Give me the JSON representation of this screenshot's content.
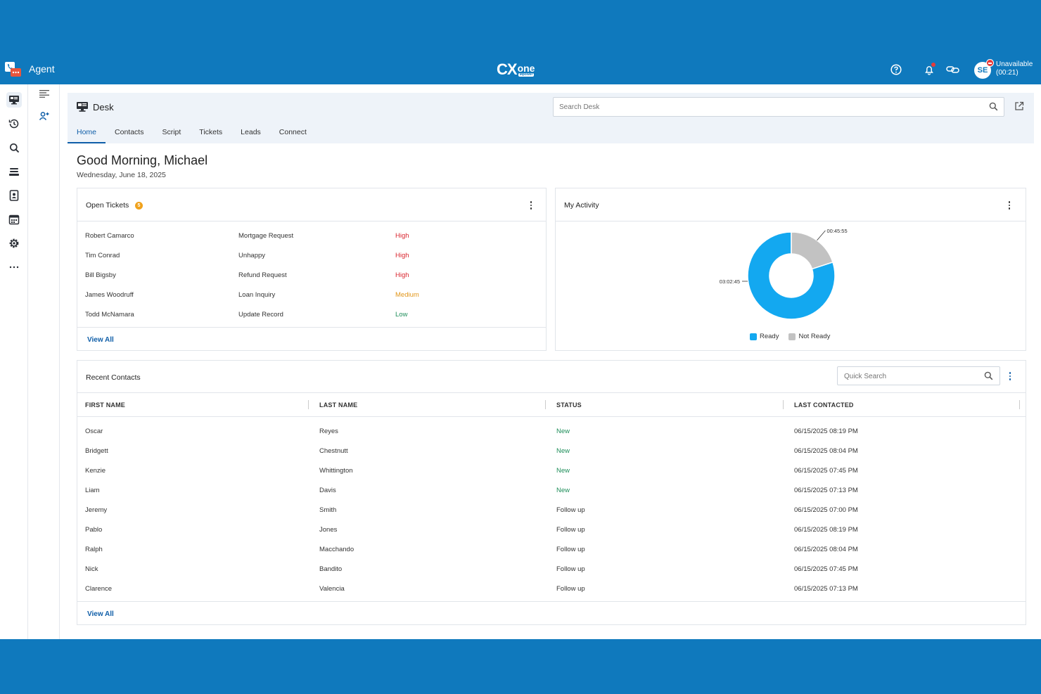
{
  "header": {
    "app_title": "Agent",
    "brand_main": "CX",
    "brand_one": "one",
    "brand_sub": "Mpower",
    "status_line1": "Unavailable",
    "status_line2": "(00:21)",
    "avatar_initials": "SE"
  },
  "desk": {
    "title": "Desk",
    "search_placeholder": "Search Desk",
    "tabs": [
      "Home",
      "Contacts",
      "Script",
      "Tickets",
      "Leads",
      "Connect"
    ],
    "active_tab": "Home"
  },
  "greeting": {
    "text": "Good Morning, Michael",
    "date": "Wednesday, June 18, 2025"
  },
  "open_tickets": {
    "title": "Open Tickets",
    "count": "5",
    "rows": [
      {
        "name": "Robert Camarco",
        "subject": "Mortgage Request",
        "priority": "High"
      },
      {
        "name": "Tim Conrad",
        "subject": "Unhappy",
        "priority": "High"
      },
      {
        "name": "Bill Bigsby",
        "subject": "Refund Request",
        "priority": "High"
      },
      {
        "name": "James Woodruff",
        "subject": "Loan Inquiry",
        "priority": "Medium"
      },
      {
        "name": "Todd McNamara",
        "subject": "Update Record",
        "priority": "Low"
      }
    ],
    "view_all": "View All"
  },
  "activity": {
    "title": "My Activity"
  },
  "chart_data": {
    "type": "pie",
    "categories": [
      "Ready",
      "Not Ready"
    ],
    "values": [
      0.8,
      0.2
    ],
    "labels": [
      "03:02:45",
      "00:45:55"
    ],
    "legend": [
      "Ready",
      "Not Ready"
    ],
    "legend_position": "bottom",
    "colors": [
      "#13a8f0",
      "#c2c2c2"
    ]
  },
  "recent_contacts": {
    "title": "Recent Contacts",
    "search_placeholder": "Quick Search",
    "columns": [
      "FIRST NAME",
      "LAST NAME",
      "STATUS",
      "LAST CONTACTED"
    ],
    "rows": [
      {
        "first": "Oscar",
        "last": "Reyes",
        "status": "New",
        "contacted": "06/15/2025 08:19 PM"
      },
      {
        "first": "Bridgett",
        "last": "Chestnutt",
        "status": "New",
        "contacted": "06/15/2025 08:04 PM"
      },
      {
        "first": "Kenzie",
        "last": "Whittington",
        "status": "New",
        "contacted": "06/15/2025 07:45 PM"
      },
      {
        "first": "Liam",
        "last": "Davis",
        "status": "New",
        "contacted": "06/15/2025 07:13 PM"
      },
      {
        "first": "Jeremy",
        "last": "Smith",
        "status": "Follow up",
        "contacted": "06/15/2025 07:00 PM"
      },
      {
        "first": "Pablo",
        "last": "Jones",
        "status": "Follow up",
        "contacted": "06/15/2025 08:19 PM"
      },
      {
        "first": "Ralph",
        "last": "Macchando",
        "status": "Follow up",
        "contacted": "06/15/2025 08:04 PM"
      },
      {
        "first": "Nick",
        "last": "Bandito",
        "status": "Follow up",
        "contacted": "06/15/2025 07:45 PM"
      },
      {
        "first": "Clarence",
        "last": "Valencia",
        "status": "Follow up",
        "contacted": "06/15/2025 07:13 PM"
      }
    ],
    "view_all": "View All"
  },
  "colors": {
    "brand": "#0f79bd",
    "link": "#0f5ea8",
    "high": "#d9262f",
    "medium": "#e2961a",
    "low": "#1e8e5a"
  }
}
